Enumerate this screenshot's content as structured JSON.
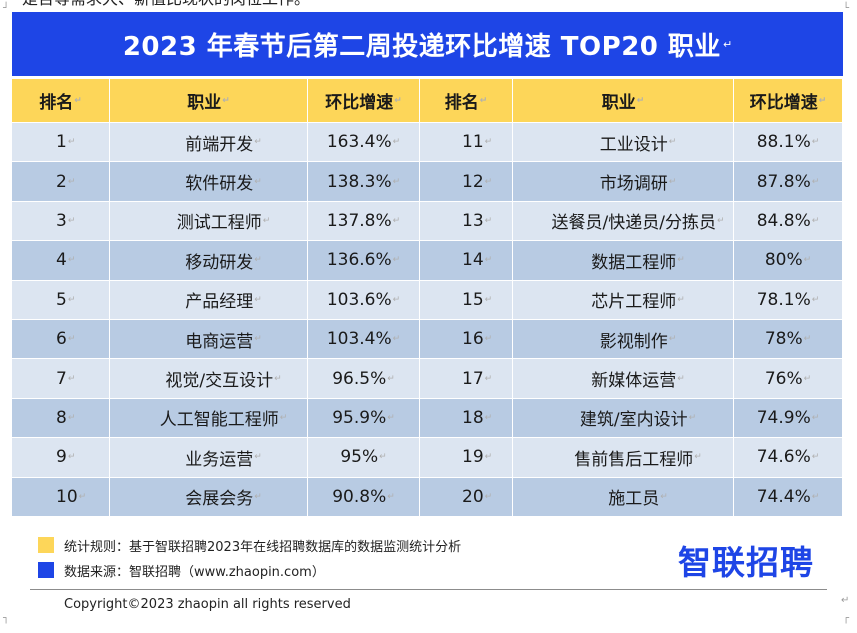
{
  "top_text": "是否等需求大、薪值比现状的岗位工作。",
  "title": "2023 年春节后第二周投递环比增速 TOP20 职业",
  "headers": [
    "排名",
    "职业",
    "环比增速",
    "排名",
    "职业",
    "环比增速"
  ],
  "rows": [
    {
      "rank_left": "1",
      "job_left": "前端开发",
      "rate_left": "163.4%",
      "rank_right": "11",
      "job_right": "工业设计",
      "rate_right": "88.1%"
    },
    {
      "rank_left": "2",
      "job_left": "软件研发",
      "rate_left": "138.3%",
      "rank_right": "12",
      "job_right": "市场调研",
      "rate_right": "87.8%"
    },
    {
      "rank_left": "3",
      "job_left": "测试工程师",
      "rate_left": "137.8%",
      "rank_right": "13",
      "job_right": "送餐员/快递员/分拣员",
      "rate_right": "84.8%"
    },
    {
      "rank_left": "4",
      "job_left": "移动研发",
      "rate_left": "136.6%",
      "rank_right": "14",
      "job_right": "数据工程师",
      "rate_right": "80%"
    },
    {
      "rank_left": "5",
      "job_left": "产品经理",
      "rate_left": "103.6%",
      "rank_right": "15",
      "job_right": "芯片工程师",
      "rate_right": "78.1%"
    },
    {
      "rank_left": "6",
      "job_left": "电商运营",
      "rate_left": "103.4%",
      "rank_right": "16",
      "job_right": "影视制作",
      "rate_right": "78%"
    },
    {
      "rank_left": "7",
      "job_left": "视觉/交互设计",
      "rate_left": "96.5%",
      "rank_right": "17",
      "job_right": "新媒体运营",
      "rate_right": "76%"
    },
    {
      "rank_left": "8",
      "job_left": "人工智能工程师",
      "rate_left": "95.9%",
      "rank_right": "18",
      "job_right": "建筑/室内设计",
      "rate_right": "74.9%"
    },
    {
      "rank_left": "9",
      "job_left": "业务运营",
      "rate_left": "95%",
      "rank_right": "19",
      "job_right": "售前售后工程师",
      "rate_right": "74.6%"
    },
    {
      "rank_left": "10",
      "job_left": "会展会务",
      "rate_left": "90.8%",
      "rank_right": "20",
      "job_right": "施工员",
      "rate_right": "74.4%"
    }
  ],
  "legend": [
    {
      "text": "统计规则：基于智联招聘2023年在线招聘数据库的数据监测统计分析",
      "color": "#fdd659"
    },
    {
      "text": "数据来源：智联招聘（www.zhaopin.com）",
      "color": "#1e45e6"
    }
  ],
  "brand": "智联招聘",
  "copyright": "Copyright©2023 zhaopin all rights reserved",
  "paragraph_mark": "↵",
  "colors": {
    "title_bg": "#1e45e6",
    "header_bg": "#fdd659",
    "row_light": "#dce5f1",
    "row_dark": "#b8cbe3",
    "brand": "#1e45e6"
  }
}
